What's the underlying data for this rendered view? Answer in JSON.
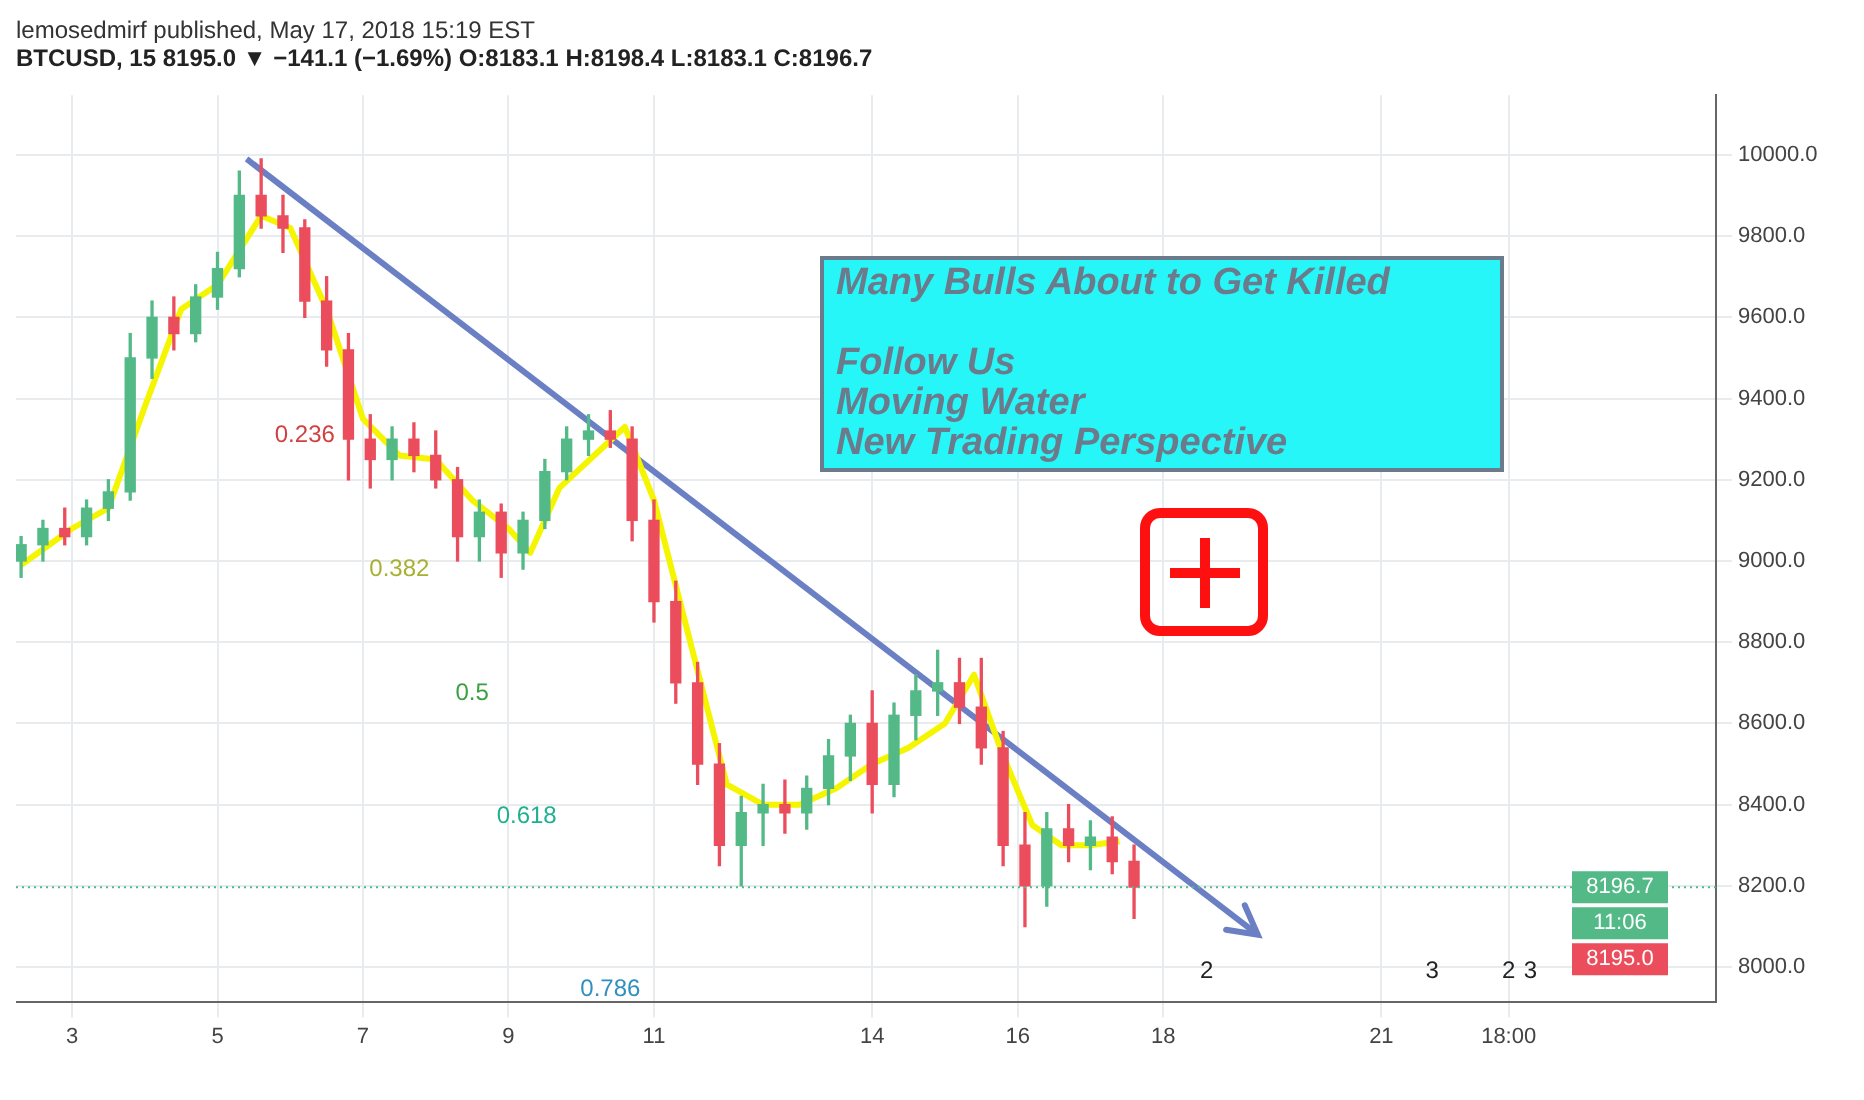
{
  "chart_data": {
    "type": "candlestick",
    "title": "lemosedmirf published, May 17, 2018 15:19 EST",
    "subtitle": "BTCUSD, 15  8195.0 ▼ −141.1 (−1.69%) O:8183.1 H:8198.4 L:8183.1 C:8196.7",
    "x": [
      "2018-05-02T07:12",
      "2018-05-02T14:24",
      "2018-05-02T21:36",
      "2018-05-03T04:48",
      "2018-05-03T12:00",
      "2018-05-03T19:12",
      "2018-05-04T02:24",
      "2018-05-04T09:36",
      "2018-05-04T16:48",
      "2018-05-05T00:00",
      "2018-05-05T07:12",
      "2018-05-05T14:24",
      "2018-05-05T21:36",
      "2018-05-06T04:48",
      "2018-05-06T12:00",
      "2018-05-06T19:12",
      "2018-05-07T02:24",
      "2018-05-07T09:36",
      "2018-05-07T16:48",
      "2018-05-08T00:00",
      "2018-05-08T07:12",
      "2018-05-08T14:24",
      "2018-05-08T21:36",
      "2018-05-09T04:48",
      "2018-05-09T12:00",
      "2018-05-09T19:12",
      "2018-05-10T02:24",
      "2018-05-10T09:36",
      "2018-05-10T16:48",
      "2018-05-11T00:00",
      "2018-05-11T07:12",
      "2018-05-11T14:24",
      "2018-05-11T21:36",
      "2018-05-12T04:48",
      "2018-05-12T12:00",
      "2018-05-12T19:12",
      "2018-05-13T02:24",
      "2018-05-13T09:36",
      "2018-05-13T16:48",
      "2018-05-14T00:00",
      "2018-05-14T07:12",
      "2018-05-14T14:24",
      "2018-05-14T21:36",
      "2018-05-15T04:48",
      "2018-05-15T12:00",
      "2018-05-15T19:12",
      "2018-05-16T02:24",
      "2018-05-16T09:36",
      "2018-05-16T16:48",
      "2018-05-17T00:00",
      "2018-05-17T07:12",
      "2018-05-17T14:24"
    ],
    "ohlc": [
      [
        9000,
        9060,
        8960,
        9040
      ],
      [
        9040,
        9100,
        9000,
        9080
      ],
      [
        9080,
        9130,
        9040,
        9060
      ],
      [
        9060,
        9150,
        9040,
        9130
      ],
      [
        9130,
        9200,
        9100,
        9170
      ],
      [
        9170,
        9560,
        9150,
        9500
      ],
      [
        9500,
        9640,
        9450,
        9600
      ],
      [
        9600,
        9650,
        9520,
        9560
      ],
      [
        9560,
        9680,
        9540,
        9650
      ],
      [
        9650,
        9760,
        9620,
        9720
      ],
      [
        9720,
        9960,
        9700,
        9900
      ],
      [
        9900,
        9990,
        9820,
        9850
      ],
      [
        9850,
        9900,
        9760,
        9820
      ],
      [
        9820,
        9840,
        9600,
        9640
      ],
      [
        9640,
        9700,
        9480,
        9520
      ],
      [
        9520,
        9560,
        9200,
        9300
      ],
      [
        9300,
        9360,
        9180,
        9250
      ],
      [
        9250,
        9330,
        9200,
        9300
      ],
      [
        9300,
        9340,
        9220,
        9260
      ],
      [
        9260,
        9320,
        9180,
        9200
      ],
      [
        9200,
        9230,
        9000,
        9060
      ],
      [
        9060,
        9150,
        9000,
        9120
      ],
      [
        9120,
        9140,
        8960,
        9020
      ],
      [
        9020,
        9120,
        8980,
        9100
      ],
      [
        9100,
        9250,
        9080,
        9220
      ],
      [
        9220,
        9330,
        9200,
        9300
      ],
      [
        9300,
        9360,
        9260,
        9320
      ],
      [
        9320,
        9370,
        9280,
        9300
      ],
      [
        9300,
        9330,
        9050,
        9100
      ],
      [
        9100,
        9150,
        8850,
        8900
      ],
      [
        8900,
        8950,
        8650,
        8700
      ],
      [
        8700,
        8750,
        8450,
        8500
      ],
      [
        8500,
        8550,
        8250,
        8300
      ],
      [
        8300,
        8420,
        8200,
        8380
      ],
      [
        8380,
        8450,
        8300,
        8400
      ],
      [
        8400,
        8460,
        8330,
        8380
      ],
      [
        8380,
        8470,
        8340,
        8440
      ],
      [
        8440,
        8560,
        8400,
        8520
      ],
      [
        8520,
        8620,
        8460,
        8600
      ],
      [
        8600,
        8680,
        8380,
        8450
      ],
      [
        8450,
        8650,
        8420,
        8620
      ],
      [
        8620,
        8720,
        8560,
        8680
      ],
      [
        8680,
        8780,
        8620,
        8700
      ],
      [
        8700,
        8760,
        8600,
        8640
      ],
      [
        8640,
        8760,
        8500,
        8540
      ],
      [
        8540,
        8580,
        8250,
        8300
      ],
      [
        8300,
        8380,
        8100,
        8200
      ],
      [
        8200,
        8380,
        8150,
        8340
      ],
      [
        8340,
        8400,
        8260,
        8300
      ],
      [
        8300,
        8360,
        8240,
        8320
      ],
      [
        8320,
        8370,
        8230,
        8260
      ],
      [
        8260,
        8300,
        8120,
        8196.7
      ]
    ],
    "colors": [
      "#53b987",
      "#53b987",
      "#eb4d5c",
      "#53b987",
      "#53b987",
      "#53b987",
      "#53b987",
      "#eb4d5c",
      "#53b987",
      "#53b987",
      "#53b987",
      "#eb4d5c",
      "#eb4d5c",
      "#eb4d5c",
      "#eb4d5c",
      "#eb4d5c",
      "#eb4d5c",
      "#53b987",
      "#eb4d5c",
      "#eb4d5c",
      "#eb4d5c",
      "#53b987",
      "#eb4d5c",
      "#53b987",
      "#53b987",
      "#53b987",
      "#53b987",
      "#eb4d5c",
      "#eb4d5c",
      "#eb4d5c",
      "#eb4d5c",
      "#eb4d5c",
      "#eb4d5c",
      "#53b987",
      "#53b987",
      "#eb4d5c",
      "#53b987",
      "#53b987",
      "#53b987",
      "#eb4d5c",
      "#53b987",
      "#53b987",
      "#53b987",
      "#eb4d5c",
      "#eb4d5c",
      "#eb4d5c",
      "#eb4d5c",
      "#53b987",
      "#eb4d5c",
      "#53b987",
      "#eb4d5c",
      "#eb4d5c"
    ],
    "series": [
      {
        "type": "line",
        "color": "#f5f500",
        "x": [
          "2018-05-02T07:12",
          "2018-05-03T00:00",
          "2018-05-03T12:00",
          "2018-05-04T00:00",
          "2018-05-04T12:00",
          "2018-05-05T00:00",
          "2018-05-05T14:24",
          "2018-05-06T00:00",
          "2018-05-06T12:00",
          "2018-05-07T00:00",
          "2018-05-07T12:00",
          "2018-05-08T00:00",
          "2018-05-08T12:00",
          "2018-05-09T00:00",
          "2018-05-09T07:12",
          "2018-05-09T16:48",
          "2018-05-10T07:12",
          "2018-05-10T14:24",
          "2018-05-11T00:00",
          "2018-05-11T12:00",
          "2018-05-12T00:00",
          "2018-05-12T12:00",
          "2018-05-13T00:00",
          "2018-05-13T12:00",
          "2018-05-14T00:00",
          "2018-05-14T12:00",
          "2018-05-15T00:00",
          "2018-05-15T09:36",
          "2018-05-15T19:12",
          "2018-05-16T04:48",
          "2018-05-16T14:24",
          "2018-05-17T00:00",
          "2018-05-17T09:36"
        ],
        "values": [
          8990,
          9080,
          9130,
          9380,
          9620,
          9680,
          9850,
          9820,
          9620,
          9350,
          9260,
          9250,
          9150,
          9080,
          9020,
          9180,
          9280,
          9330,
          9150,
          8800,
          8450,
          8400,
          8400,
          8440,
          8500,
          8540,
          8600,
          8720,
          8520,
          8350,
          8300,
          8300,
          8310
        ]
      },
      {
        "type": "line",
        "color": "#6b7fc4",
        "x": [
          "2018-05-05T09:36",
          "2018-05-19T07:12"
        ],
        "values": [
          9990,
          8080
        ]
      }
    ],
    "xlim": [
      "2018-05-02T05:31",
      "2018-05-25T14:24"
    ],
    "xticks": [
      {
        "value": "2018-05-03",
        "label": "3"
      },
      {
        "value": "2018-05-05",
        "label": "5"
      },
      {
        "value": "2018-05-07",
        "label": "7"
      },
      {
        "value": "2018-05-09",
        "label": "9"
      },
      {
        "value": "2018-05-11",
        "label": "11"
      },
      {
        "value": "2018-05-14",
        "label": "14"
      },
      {
        "value": "2018-05-16",
        "label": "16"
      },
      {
        "value": "2018-05-18",
        "label": "18"
      },
      {
        "value": "2018-05-21",
        "label": "21"
      },
      {
        "value": "2018-05-22T18:00",
        "label": "18:00"
      }
    ],
    "ylim": [
      7915,
      10147
    ],
    "yticks": [
      {
        "value": 8000,
        "label": "8000.0"
      },
      {
        "value": 8200,
        "label": "8200.0"
      },
      {
        "value": 8400,
        "label": "8400.0"
      },
      {
        "value": 8600,
        "label": "8600.0"
      },
      {
        "value": 8800,
        "label": "8800.0"
      },
      {
        "value": 9000,
        "label": "9000.0"
      },
      {
        "value": 9200,
        "label": "9200.0"
      },
      {
        "value": 9400,
        "label": "9400.0"
      },
      {
        "value": 9600,
        "label": "9600.0"
      },
      {
        "value": 9800,
        "label": "9800.0"
      },
      {
        "value": 10000,
        "label": "10000.0"
      }
    ],
    "grid": true,
    "legend": false,
    "ref_lines": [
      {
        "axis": "y",
        "value": 8196.7,
        "label": "8196.7",
        "color": "#53b987",
        "line_style": "dotted"
      }
    ],
    "annotations": [
      "Many Bulls About to Get Killed\n\nFollow Us\nMoving Water\nNew Trading Perspective",
      "11:06",
      "8195.0",
      "0.236",
      "0.382",
      "0.5",
      "0.618",
      "0.786",
      "2",
      "3",
      "2",
      "3"
    ]
  }
}
